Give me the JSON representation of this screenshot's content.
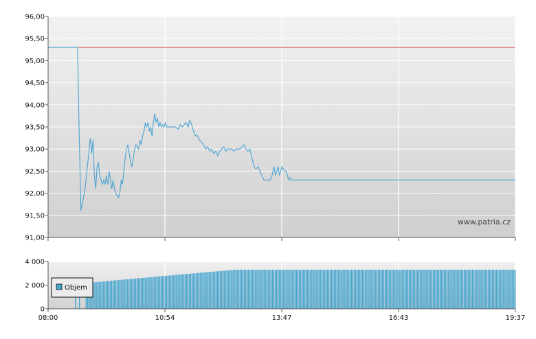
{
  "watermark": "www.patria.cz",
  "colors": {
    "price_line": "#4aa3d3",
    "reference_line": "#d9534f",
    "volume_bar": "#48a6cf",
    "grid": "#ffffff",
    "bg_top": "#f3f3f3",
    "bg_bottom": "#cdcdcd"
  },
  "chart_data": [
    {
      "type": "line",
      "x_ticks": [
        "08:00",
        "10:54",
        "13:47",
        "16:43",
        "19:37"
      ],
      "y_ticks": [
        "91,00",
        "91,50",
        "92,00",
        "92,50",
        "93,00",
        "93,50",
        "94,00",
        "94,50",
        "95,00",
        "95,50",
        "96,00"
      ],
      "ylim": [
        91.0,
        96.0
      ],
      "xlim_minutes": [
        0,
        697
      ],
      "reference_value": 95.3,
      "watermark": "www.patria.cz",
      "series": [
        {
          "points": [
            [
              0,
              95.3
            ],
            [
              44,
              95.3
            ],
            [
              46,
              93.6
            ],
            [
              49,
              91.6
            ],
            [
              55,
              92.1
            ],
            [
              60,
              92.8
            ],
            [
              63,
              93.25
            ],
            [
              65,
              92.9
            ],
            [
              67,
              93.2
            ],
            [
              69,
              92.4
            ],
            [
              71,
              92.1
            ],
            [
              73,
              92.6
            ],
            [
              75,
              92.7
            ],
            [
              77,
              92.4
            ],
            [
              79,
              92.3
            ],
            [
              81,
              92.2
            ],
            [
              83,
              92.3
            ],
            [
              85,
              92.2
            ],
            [
              87,
              92.4
            ],
            [
              89,
              92.2
            ],
            [
              91,
              92.5
            ],
            [
              93,
              92.3
            ],
            [
              95,
              92.1
            ],
            [
              97,
              92.3
            ],
            [
              99,
              92.1
            ],
            [
              101,
              92.0
            ],
            [
              103,
              91.95
            ],
            [
              105,
              91.9
            ],
            [
              107,
              92.0
            ],
            [
              109,
              92.3
            ],
            [
              111,
              92.2
            ],
            [
              113,
              92.5
            ],
            [
              115,
              92.8
            ],
            [
              117,
              93.0
            ],
            [
              119,
              93.1
            ],
            [
              121,
              92.9
            ],
            [
              123,
              92.7
            ],
            [
              125,
              92.6
            ],
            [
              127,
              92.8
            ],
            [
              129,
              93.0
            ],
            [
              131,
              93.1
            ],
            [
              133,
              93.05
            ],
            [
              135,
              93.0
            ],
            [
              137,
              93.2
            ],
            [
              139,
              93.1
            ],
            [
              141,
              93.3
            ],
            [
              143,
              93.4
            ],
            [
              145,
              93.6
            ],
            [
              147,
              93.5
            ],
            [
              149,
              93.6
            ],
            [
              151,
              93.4
            ],
            [
              153,
              93.5
            ],
            [
              155,
              93.3
            ],
            [
              157,
              93.6
            ],
            [
              159,
              93.8
            ],
            [
              161,
              93.6
            ],
            [
              163,
              93.7
            ],
            [
              165,
              93.5
            ],
            [
              167,
              93.6
            ],
            [
              169,
              93.5
            ],
            [
              171,
              93.55
            ],
            [
              173,
              93.5
            ],
            [
              175,
              93.6
            ],
            [
              177,
              93.5
            ],
            [
              180,
              93.5
            ],
            [
              185,
              93.5
            ],
            [
              190,
              93.5
            ],
            [
              194,
              93.45
            ],
            [
              197,
              93.55
            ],
            [
              200,
              93.5
            ],
            [
              203,
              93.55
            ],
            [
              206,
              93.6
            ],
            [
              209,
              93.5
            ],
            [
              211,
              93.65
            ],
            [
              213,
              93.6
            ],
            [
              215,
              93.5
            ],
            [
              217,
              93.4
            ],
            [
              220,
              93.3
            ],
            [
              223,
              93.3
            ],
            [
              226,
              93.2
            ],
            [
              229,
              93.15
            ],
            [
              232,
              93.1
            ],
            [
              235,
              93.0
            ],
            [
              238,
              93.05
            ],
            [
              241,
              92.95
            ],
            [
              244,
              93.0
            ],
            [
              247,
              92.9
            ],
            [
              250,
              92.95
            ],
            [
              253,
              92.85
            ],
            [
              256,
              92.95
            ],
            [
              259,
              93.0
            ],
            [
              262,
              93.05
            ],
            [
              265,
              92.95
            ],
            [
              268,
              93.0
            ],
            [
              271,
              93.0
            ],
            [
              274,
              93.0
            ],
            [
              277,
              92.95
            ],
            [
              280,
              93.0
            ],
            [
              283,
              93.0
            ],
            [
              286,
              93.0
            ],
            [
              289,
              93.05
            ],
            [
              292,
              93.1
            ],
            [
              295,
              93.0
            ],
            [
              298,
              92.95
            ],
            [
              301,
              93.0
            ],
            [
              304,
              92.8
            ],
            [
              307,
              92.6
            ],
            [
              310,
              92.55
            ],
            [
              313,
              92.6
            ],
            [
              316,
              92.5
            ],
            [
              319,
              92.4
            ],
            [
              322,
              92.3
            ],
            [
              325,
              92.3
            ],
            [
              328,
              92.3
            ],
            [
              331,
              92.3
            ],
            [
              334,
              92.4
            ],
            [
              337,
              92.6
            ],
            [
              339,
              92.4
            ],
            [
              341,
              92.5
            ],
            [
              343,
              92.6
            ],
            [
              345,
              92.4
            ],
            [
              347,
              92.5
            ],
            [
              349,
              92.6
            ],
            [
              351,
              92.55
            ],
            [
              353,
              92.5
            ],
            [
              355,
              92.5
            ],
            [
              357,
              92.4
            ],
            [
              359,
              92.3
            ],
            [
              361,
              92.35
            ],
            [
              363,
              92.3
            ],
            [
              400,
              92.3
            ],
            [
              500,
              92.3
            ],
            [
              600,
              92.3
            ],
            [
              697,
              92.3
            ]
          ]
        }
      ]
    },
    {
      "type": "bar",
      "x_ticks": [
        "08:00",
        "10:54",
        "13:47",
        "16:43",
        "19:37"
      ],
      "y_ticks": [
        "0",
        "2 000",
        "4 000"
      ],
      "ylim": [
        0,
        4000
      ],
      "legend": "Objem",
      "legend_position": "left",
      "volume_start_minute": 40,
      "volume_step_minutes": 2,
      "volume_values": [
        1800,
        0,
        0,
        2100,
        0,
        0,
        0,
        0,
        2150,
        2180,
        2200,
        2200,
        2210,
        2220,
        2230,
        2250,
        2260,
        2270,
        2280,
        2290,
        2300,
        2310,
        2320,
        2330,
        2340,
        2350,
        2360,
        2370,
        2380,
        2400,
        2410,
        2420,
        2430,
        2440,
        2450,
        2460,
        2470,
        2480,
        2490,
        2500,
        2510,
        2520,
        2530,
        2540,
        2550,
        2560,
        2570,
        2580,
        2590,
        2600,
        2610,
        2620,
        2630,
        2640,
        2650,
        2660,
        2670,
        2680,
        2690,
        2700,
        2710,
        2720,
        2730,
        2740,
        2750,
        2760,
        2770,
        2780,
        2790,
        2800,
        2810,
        2820,
        2830,
        2840,
        2850,
        2860,
        2870,
        2880,
        2890,
        2900,
        2910,
        2920,
        2930,
        2940,
        2950,
        2960,
        2970,
        2980,
        2990,
        3000,
        3010,
        3020,
        3030,
        3040,
        3050,
        3060,
        3070,
        3080,
        3090,
        3100,
        3110,
        3120,
        3130,
        3140,
        3150,
        3160,
        3170,
        3180,
        3190,
        3200,
        3210,
        3220,
        3230,
        3240,
        3250,
        3260,
        3270,
        3280,
        3290,
        3300,
        3300,
        3300,
        3300,
        3300,
        3300,
        3300,
        3300,
        3300,
        3300,
        3300,
        3300,
        3300,
        3300,
        3300,
        3300,
        3300,
        3300,
        3300,
        3300,
        3300,
        3300,
        3300,
        3300,
        3300,
        3300,
        3300,
        3300,
        3300,
        3300,
        3300,
        3300,
        3300,
        3300,
        3300,
        3300,
        3300,
        3300,
        3300,
        3300,
        3300,
        3300,
        3300,
        3300,
        3300,
        3300,
        3300,
        3300,
        3300,
        3300,
        3300,
        3300,
        3300,
        3300,
        3300,
        3300,
        3300,
        3300,
        3300,
        3300,
        3300,
        3300,
        3300,
        3300,
        3300,
        3300,
        3300,
        3300,
        3300,
        3300,
        3300,
        3300,
        3300,
        3300,
        3300,
        3300,
        3300,
        3300,
        3300,
        3300,
        3300,
        3300,
        3300,
        3300,
        3300,
        3300,
        3300,
        3300,
        3300,
        3300,
        3300,
        3300,
        3300,
        3300,
        3300,
        3300,
        3300,
        3300,
        3300,
        3300,
        3300,
        3300,
        3300,
        3300,
        3300,
        3300,
        3300,
        3300,
        3300,
        3300,
        3300,
        3300,
        3300,
        3300,
        3300,
        3300,
        3300,
        3300,
        3300,
        3300,
        3300,
        3300,
        3300,
        3300,
        3300,
        3300,
        3300,
        3300,
        3300,
        3300,
        3300,
        3300,
        3300,
        3300,
        3300,
        3300,
        3300,
        3300,
        3300,
        3300,
        3300,
        3300,
        3300,
        3300,
        3300,
        3300,
        3300,
        3300,
        3300,
        3300,
        3300,
        3300,
        3300,
        3300,
        3300,
        3300,
        3300,
        3300,
        3300,
        3300,
        3300,
        3300,
        3300,
        3300,
        3300,
        3300,
        3300,
        3300,
        3300,
        3300,
        3300,
        3300,
        3300,
        3300,
        3300,
        3300,
        3300,
        3300,
        3300,
        3300,
        3300,
        3300,
        3300,
        3300,
        3300,
        3300,
        3300,
        3300,
        3300,
        3300,
        3300,
        3300,
        3300,
        3300,
        3300,
        3300,
        3300,
        3300,
        3300,
        3300,
        3300,
        3300,
        3300,
        3300,
        3300,
        3300,
        3300,
        3300,
        3300,
        3300,
        3300,
        3300,
        3300,
        3300,
        3300,
        3300,
        3300,
        3300,
        3300,
        3300,
        3300,
        3300,
        3300,
        3300,
        3300,
        3300,
        3300,
        3300,
        3300,
        3300,
        3300,
        3300,
        3300,
        3300,
        3300,
        3300,
        3300,
        3300,
        3300,
        3300
      ]
    }
  ]
}
